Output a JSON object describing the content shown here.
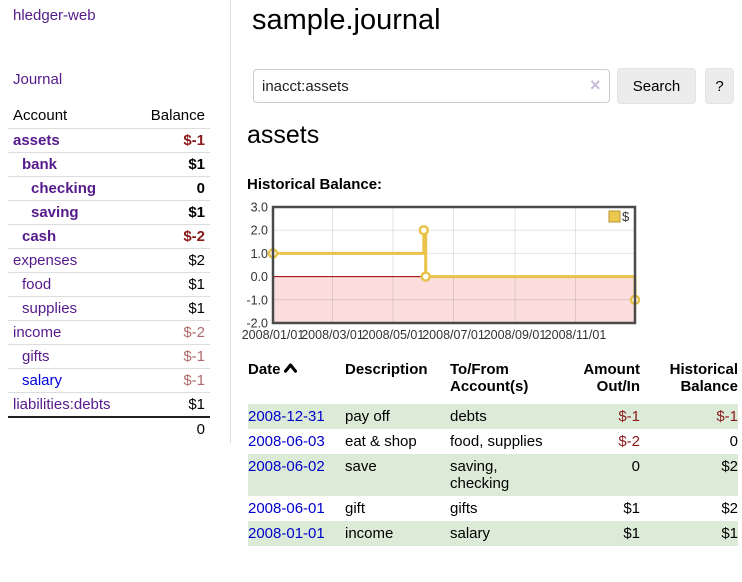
{
  "app": {
    "brand": "hledger-web",
    "nav_journal": "Journal"
  },
  "sidebar": {
    "header": {
      "account": "Account",
      "balance": "Balance"
    },
    "accounts": [
      {
        "name": "assets",
        "indent": 0,
        "balance": "$-1",
        "bold": true,
        "neg": "strong",
        "link": "purple"
      },
      {
        "name": "bank",
        "indent": 1,
        "balance": "$1",
        "bold": true,
        "neg": "none",
        "link": "purple"
      },
      {
        "name": "checking",
        "indent": 2,
        "balance": "0",
        "bold": true,
        "neg": "none",
        "link": "purple"
      },
      {
        "name": "saving",
        "indent": 2,
        "balance": "$1",
        "bold": true,
        "neg": "none",
        "link": "purple"
      },
      {
        "name": "cash",
        "indent": 1,
        "balance": "$-2",
        "bold": true,
        "neg": "strong",
        "link": "purple"
      },
      {
        "name": "expenses",
        "indent": 0,
        "balance": "$2",
        "bold": false,
        "neg": "none",
        "link": "purple"
      },
      {
        "name": "food",
        "indent": 1,
        "balance": "$1",
        "bold": false,
        "neg": "none",
        "link": "purple"
      },
      {
        "name": "supplies",
        "indent": 1,
        "balance": "$1",
        "bold": false,
        "neg": "none",
        "link": "purple"
      },
      {
        "name": "income",
        "indent": 0,
        "balance": "$-2",
        "bold": false,
        "neg": "weak",
        "link": "purple"
      },
      {
        "name": "gifts",
        "indent": 1,
        "balance": "$-1",
        "bold": false,
        "neg": "weak",
        "link": "purple"
      },
      {
        "name": "salary",
        "indent": 1,
        "balance": "$-1",
        "bold": false,
        "neg": "weak",
        "link": "blue"
      },
      {
        "name": "liabilities:debts",
        "indent": 0,
        "balance": "$1",
        "bold": false,
        "neg": "none",
        "link": "purple"
      }
    ],
    "total": "0"
  },
  "header": {
    "title": "sample.journal"
  },
  "search": {
    "value": "inacct:assets",
    "clear_icon": "×",
    "button_label": "Search",
    "help_label": "?"
  },
  "account_page": {
    "title": "assets",
    "chart_label": "Historical Balance:"
  },
  "chart_data": {
    "type": "line",
    "title": "Historical Balance",
    "step": true,
    "series": [
      {
        "name": "$",
        "points": [
          [
            "2008-01-01",
            1
          ],
          [
            "2008-06-01",
            2
          ],
          [
            "2008-06-03",
            0
          ],
          [
            "2008-12-31",
            -1
          ]
        ]
      }
    ],
    "xlim": [
      "2008-01-01",
      "2008-12-31"
    ],
    "ylim": [
      -2,
      3
    ],
    "yticks": [
      "3.0",
      "2.0",
      "1.0",
      "0.0",
      "-1.0",
      "-2.0"
    ],
    "xticks": [
      "2008/01/01",
      "2008/03/01",
      "2008/05/01",
      "2008/07/01",
      "2008/09/01",
      "2008/11/01"
    ],
    "grid": true,
    "legend": {
      "label": "$",
      "position": "top-right"
    },
    "colors": {
      "line": "#e9c349",
      "marker_fill": "#ffffff",
      "negative_fill": "#fcdddd",
      "zero_line": "#990000",
      "legend_fill": "#ecc84e",
      "legend_border": "#b8962e",
      "border": "#4a4a4a",
      "tick_text": "#333333"
    }
  },
  "register": {
    "columns": [
      "Date",
      "Description",
      "To/From Account(s)",
      "Amount Out/In",
      "Historical Balance"
    ],
    "rows": [
      {
        "date": "2008-12-31",
        "description": "pay off",
        "accounts": "debts",
        "amount": "$-1",
        "balance": "$-1",
        "amount_neg": true,
        "balance_neg": true
      },
      {
        "date": "2008-06-03",
        "description": "eat & shop",
        "accounts": "food, supplies",
        "amount": "$-2",
        "balance": "0",
        "amount_neg": true,
        "balance_neg": false
      },
      {
        "date": "2008-06-02",
        "description": "save",
        "accounts": "saving, checking",
        "amount": "0",
        "balance": "$2",
        "amount_neg": false,
        "balance_neg": false
      },
      {
        "date": "2008-06-01",
        "description": "gift",
        "accounts": "gifts",
        "amount": "$1",
        "balance": "$2",
        "amount_neg": false,
        "balance_neg": false
      },
      {
        "date": "2008-01-01",
        "description": "income",
        "accounts": "salary",
        "amount": "$1",
        "balance": "$1",
        "amount_neg": false,
        "balance_neg": false
      }
    ]
  }
}
